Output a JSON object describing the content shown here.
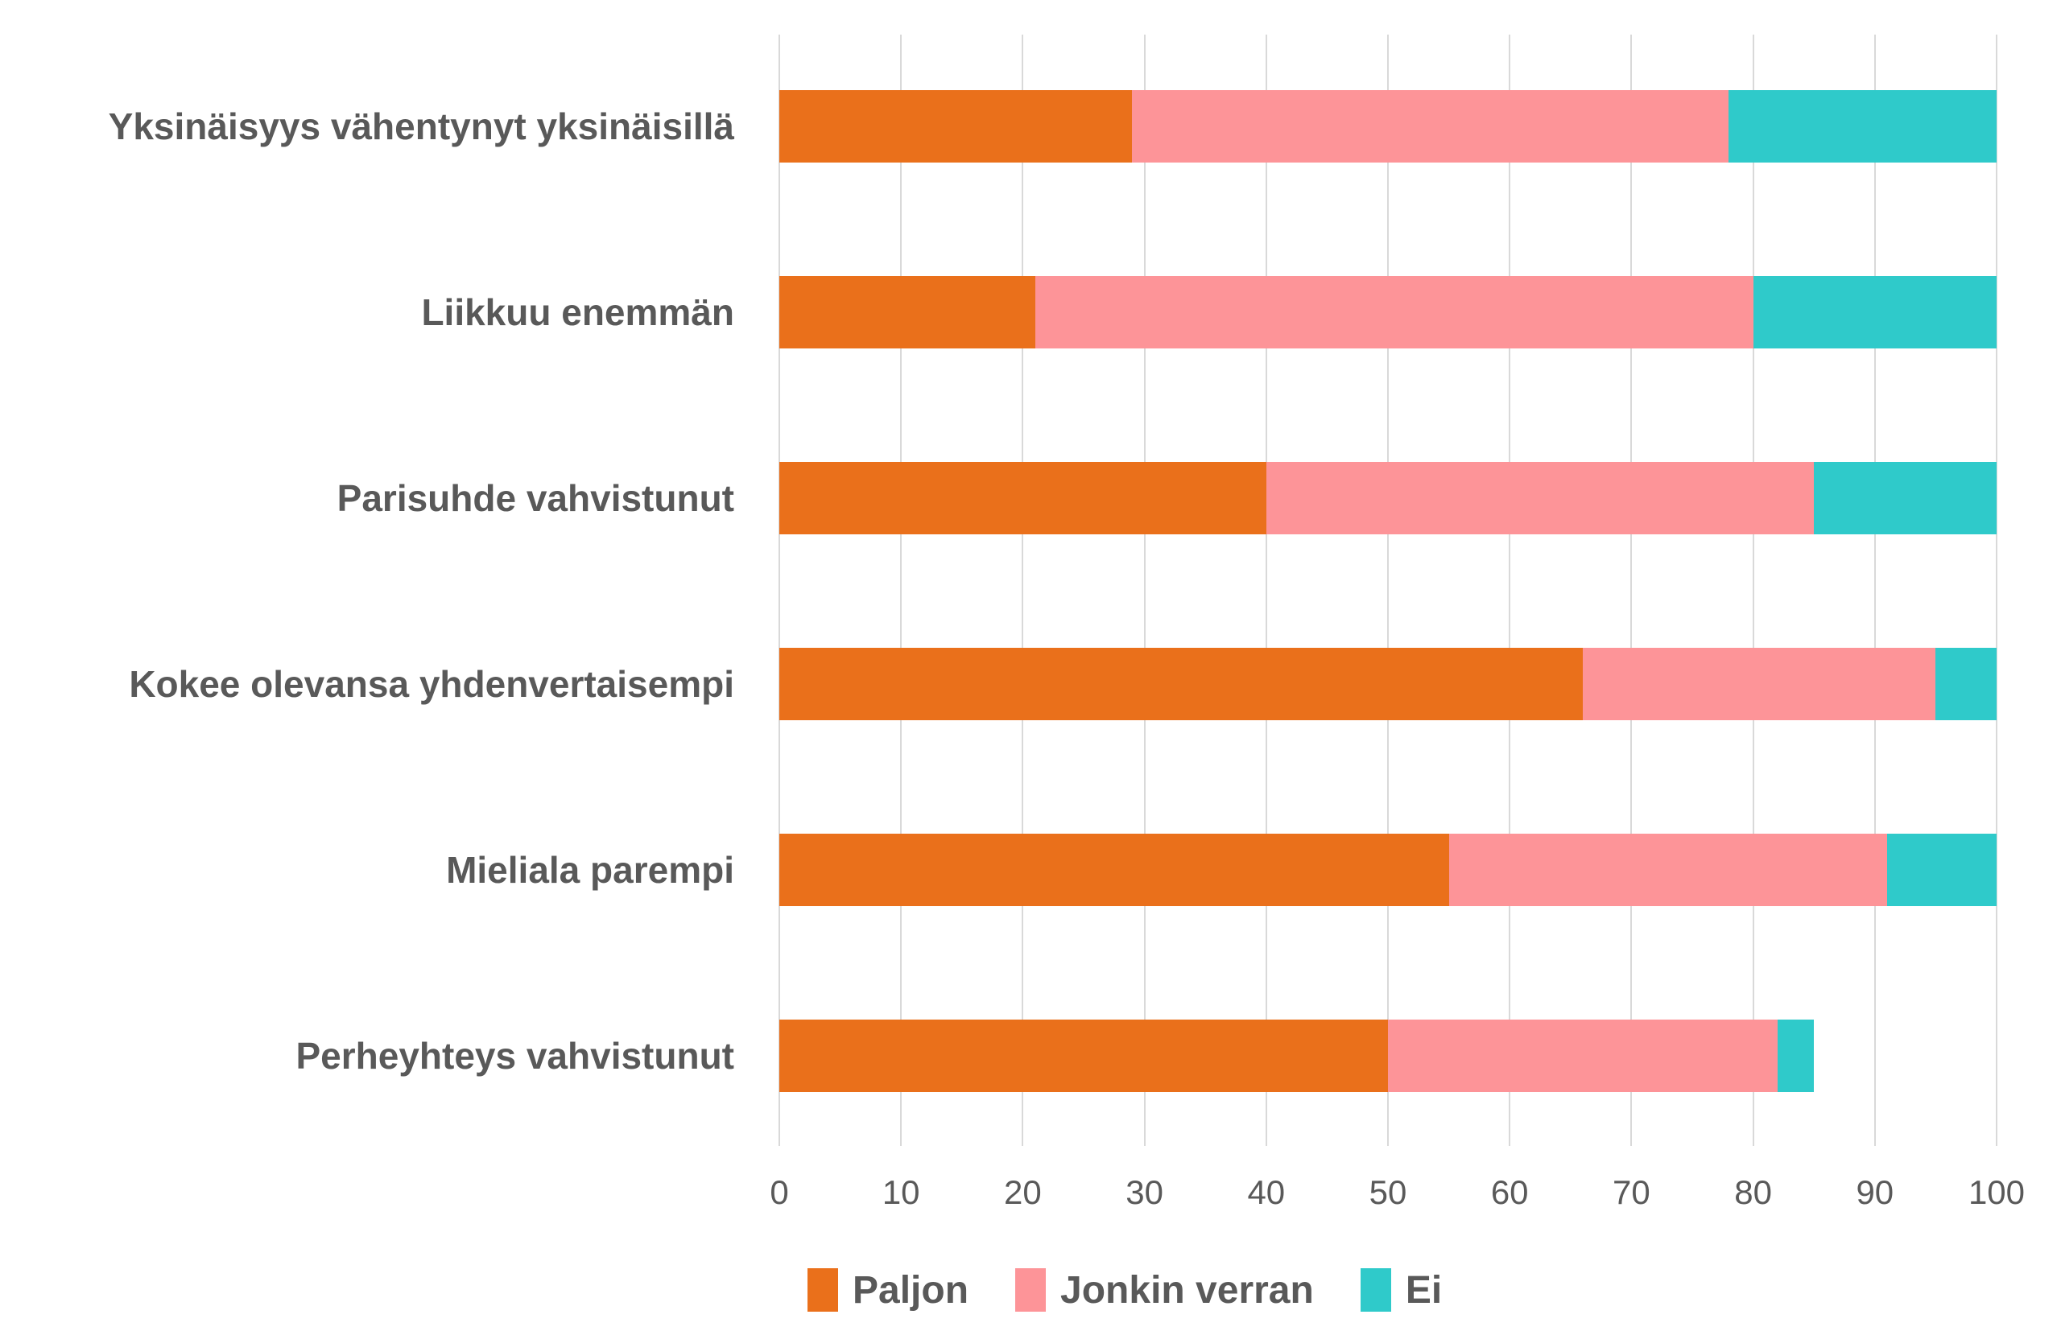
{
  "chart_data": {
    "type": "bar",
    "orientation": "horizontal",
    "stacked": true,
    "title": "",
    "xlabel": "",
    "ylabel": "",
    "categories": [
      "Yksinäisyys vähentynyt yksinäisillä",
      "Liikkuu enemmän",
      "Parisuhde vahvistunut",
      "Kokee olevansa yhdenvertaisempi",
      "Mieliala parempi",
      "Perheyhteys vahvistunut"
    ],
    "series": [
      {
        "name": "Paljon",
        "color": "#EA701B",
        "values": [
          29,
          21,
          40,
          66,
          55,
          50
        ]
      },
      {
        "name": "Jonkin verran",
        "color": "#FD9498",
        "values": [
          49,
          59,
          45,
          29,
          36,
          32
        ]
      },
      {
        "name": "Ei",
        "color": "#2FCACA",
        "values": [
          22,
          20,
          15,
          5,
          9,
          3
        ]
      }
    ],
    "xlim": [
      0,
      100
    ],
    "xticks": [
      0,
      10,
      20,
      30,
      40,
      50,
      60,
      70,
      80,
      90,
      100
    ],
    "grid": true,
    "legend_position": "bottom"
  },
  "colors": {
    "text": "#595959",
    "gridline": "#D9D9D9",
    "background": "#FFFFFF"
  }
}
